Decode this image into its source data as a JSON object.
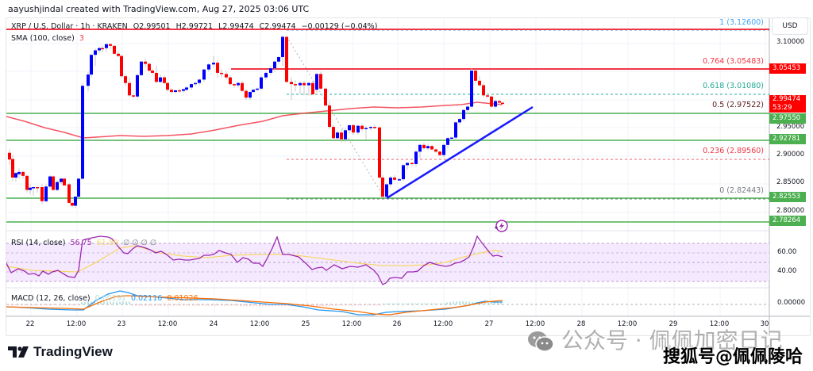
{
  "header": {
    "credit": "aayushjindal created with TradingView.com, Aug 27, 2025 03:06 UTC"
  },
  "legend": {
    "symbol": "XRP / U.S. Dollar · 1h · KRAKEN",
    "open": "O2.99501",
    "high": "H2.99721",
    "low": "L2.99474",
    "close": "C2.99474",
    "change": "−0.00129 (−0.04%)",
    "sma_label": "SMA (100, close)",
    "sma_value": "3",
    "rsi_label": "RSI (14, close)",
    "rsi_value": "56.75",
    "rsi_ma_value": "61.89",
    "rsi_extra": "∅ ∅ ∅ ∅",
    "macd_label": "MACD (12, 26, close)",
    "macd_hist": "0.00191",
    "macd_value": "0.02116",
    "macd_signal": "0.01926"
  },
  "price_axis": {
    "currency": "USD",
    "ticks": [
      "3.10000",
      "2.95000",
      "2.90000",
      "2.85000",
      "2.80000"
    ],
    "current_price": "2.99474",
    "countdown": "53:29",
    "resistance_label": "3.05453",
    "support_labels": [
      "2.97550",
      "2.92781",
      "2.82553",
      "2.78264"
    ]
  },
  "fib_levels": [
    {
      "label": "1 (3.12600)",
      "price": 3.126,
      "color": "#42a5f5"
    },
    {
      "label": "0.764 (3.05483)",
      "price": 3.05483,
      "color": "#f23645"
    },
    {
      "label": "0.618 (3.01080)",
      "price": 3.0108,
      "color": "#22ab94"
    },
    {
      "label": "0.5 (2.97522)",
      "price": 2.97522,
      "color": "#5d1a1a"
    },
    {
      "label": "0.236 (2.89560)",
      "price": 2.8956,
      "color": "#f23645"
    },
    {
      "label": "0 (2.82443)",
      "price": 2.82443,
      "color": "#787b86"
    }
  ],
  "rsi_axis": {
    "ticks": [
      "60.00",
      "40.00"
    ]
  },
  "macd_axis": {
    "ticks": [
      "0.00000"
    ]
  },
  "time_axis": {
    "ticks": [
      "22",
      "12:00",
      "23",
      "12:00",
      "24",
      "12:00",
      "25",
      "12:00",
      "26",
      "12:00",
      "27",
      "12:00",
      "28",
      "12:00",
      "29",
      "12:00",
      "30"
    ]
  },
  "branding": {
    "logo_text": "TradingView",
    "watermark_wechat": "公众号 · 佩佩加密日记",
    "watermark_sohu": "搜狐号@佩佩陵哈"
  },
  "colors": {
    "up": "#0000ff",
    "down": "#ff0000",
    "sma": "#f23645",
    "support": "#4caf50",
    "resistance": "#f23645",
    "trendline": "#1a1aff",
    "rsi": "#9c27b0",
    "rsi_ma": "#f7d76a",
    "macd": "#2196f3",
    "signal": "#ff6d00"
  },
  "chart_data": {
    "type": "candlestick",
    "title": "XRP / U.S. Dollar · 1h · KRAKEN",
    "xlabel": "",
    "ylabel": "USD",
    "ylim": [
      2.77,
      3.14
    ],
    "x_ticks": [
      "22",
      "12:00",
      "23",
      "12:00",
      "24",
      "12:00",
      "25",
      "12:00",
      "26",
      "12:00",
      "27",
      "12:00",
      "28",
      "12:00",
      "29",
      "12:00",
      "30"
    ],
    "ohlc_summary": {
      "open": 2.99501,
      "high": 2.99721,
      "low": 2.99474,
      "close": 2.99474,
      "change": -0.00129,
      "change_pct": -0.04
    },
    "horizontal_resistance": [
      3.126,
      3.05453
    ],
    "horizontal_support": [
      2.9755,
      2.92781,
      2.82553,
      2.78264
    ],
    "fibonacci": [
      {
        "ratio": 1,
        "price": 3.126
      },
      {
        "ratio": 0.764,
        "price": 3.05483
      },
      {
        "ratio": 0.618,
        "price": 3.0108
      },
      {
        "ratio": 0.5,
        "price": 2.97522
      },
      {
        "ratio": 0.236,
        "price": 2.8956
      },
      {
        "ratio": 0,
        "price": 2.82443
      }
    ],
    "trendline": {
      "from": {
        "x": "Aug 26 ~03:00",
        "price": 2.825
      },
      "to": {
        "x": "Aug 27 ~06:00",
        "price": 2.994
      },
      "type": "bullish support"
    },
    "sma100_approx": [
      {
        "x": "Aug 21 18:00",
        "y": 2.97
      },
      {
        "x": "Aug 22 12:00",
        "y": 2.93
      },
      {
        "x": "Aug 23 12:00",
        "y": 2.935
      },
      {
        "x": "Aug 24 12:00",
        "y": 2.95
      },
      {
        "x": "Aug 25 00:00",
        "y": 2.976
      },
      {
        "x": "Aug 25 12:00",
        "y": 2.985
      },
      {
        "x": "Aug 26 12:00",
        "y": 2.985
      },
      {
        "x": "Aug 27 03:00",
        "y": 2.99
      }
    ],
    "price_path_approx": [
      {
        "x": "Aug 21 18:00",
        "y": 2.9
      },
      {
        "x": "Aug 22 06:00",
        "y": 2.86
      },
      {
        "x": "Aug 22 10:00",
        "y": 2.81
      },
      {
        "x": "Aug 22 12:00",
        "y": 3.0
      },
      {
        "x": "Aug 22 20:00",
        "y": 3.1
      },
      {
        "x": "Aug 23 04:00",
        "y": 3.02
      },
      {
        "x": "Aug 23 08:00",
        "y": 3.08
      },
      {
        "x": "Aug 23 18:00",
        "y": 3.03
      },
      {
        "x": "Aug 24 06:00",
        "y": 3.07
      },
      {
        "x": "Aug 24 18:00",
        "y": 3.03
      },
      {
        "x": "Aug 25 02:00",
        "y": 3.11
      },
      {
        "x": "Aug 25 06:00",
        "y": 3.03
      },
      {
        "x": "Aug 25 12:00",
        "y": 2.93
      },
      {
        "x": "Aug 25 22:00",
        "y": 2.95
      },
      {
        "x": "Aug 26 02:00",
        "y": 2.83
      },
      {
        "x": "Aug 26 10:00",
        "y": 2.92
      },
      {
        "x": "Aug 26 18:00",
        "y": 2.97
      },
      {
        "x": "Aug 26 22:00",
        "y": 3.05
      },
      {
        "x": "Aug 27 03:00",
        "y": 2.99474
      }
    ],
    "rsi": {
      "value": 56.75,
      "ma": 61.89,
      "bands": [
        40,
        60
      ]
    },
    "macd": {
      "macd": 0.02116,
      "signal": 0.01926,
      "histogram": 0.00191
    }
  }
}
